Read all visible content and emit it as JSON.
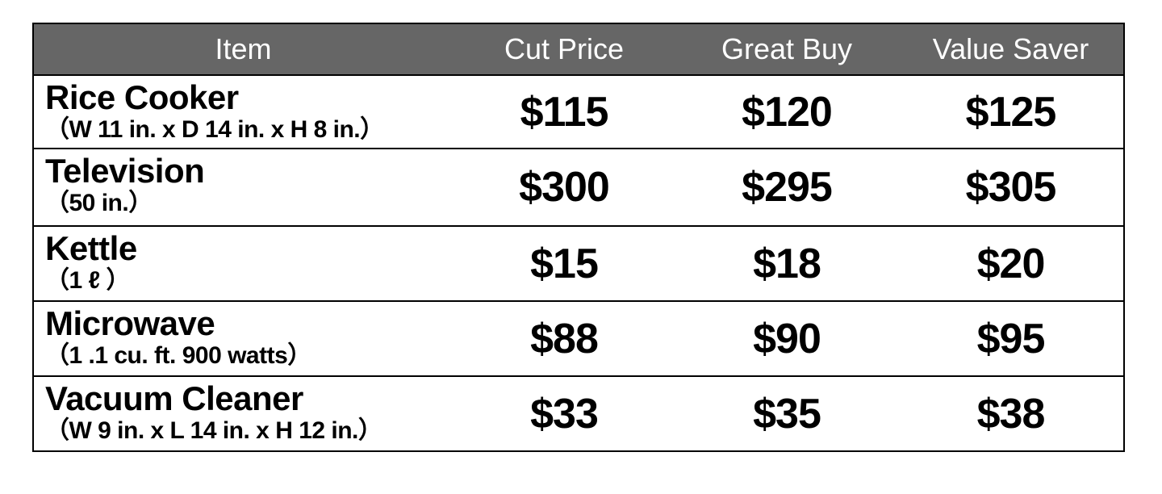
{
  "table": {
    "headers": [
      "Item",
      "Cut Price",
      "Great Buy",
      "Value Saver"
    ],
    "rows": [
      {
        "name": "Rice Cooker",
        "spec": "（W 11 in. x D 14 in. x H 8 in.）",
        "prices": [
          "$115",
          "$120",
          "$125"
        ]
      },
      {
        "name": "Television",
        "spec": "（50 in.）",
        "prices": [
          "$300",
          "$295",
          "$305"
        ]
      },
      {
        "name": "Kettle",
        "spec": "（1 ℓ ）",
        "prices": [
          "$15",
          "$18",
          "$20"
        ]
      },
      {
        "name": "Microwave",
        "spec": "（1 .1  cu. ft.  900 watts）",
        "prices": [
          "$88",
          "$90",
          "$95"
        ]
      },
      {
        "name": "Vacuum Cleaner",
        "spec": "（W 9 in. x L 14 in. x H 12 in.）",
        "prices": [
          "$33",
          "$35",
          "$38"
        ]
      }
    ]
  },
  "colors": {
    "header_background": "#666666",
    "header_text": "#ffffff",
    "border": "#000000"
  }
}
